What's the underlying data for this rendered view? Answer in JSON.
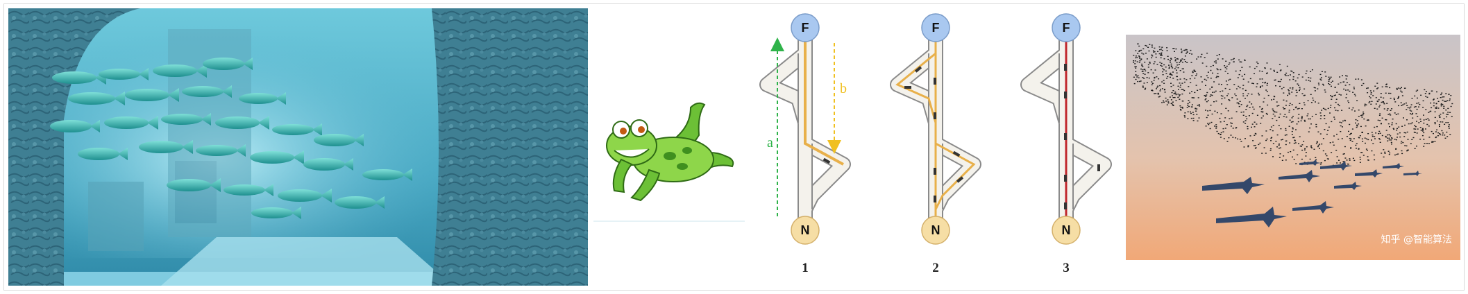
{
  "panels": [
    {
      "name": "fish-school-photo"
    },
    {
      "name": "frog-illustration"
    },
    {
      "name": "ant-path-diagram"
    },
    {
      "name": "bird-flock-photo"
    }
  ],
  "ant_diagram": {
    "node_top": "F",
    "node_bottom": "N",
    "arrow_a": "a",
    "arrow_b": "b",
    "stages": [
      "1",
      "2",
      "3"
    ]
  },
  "watermark": "知乎 @智能算法",
  "colors": {
    "node_top": "#a9c8f0",
    "node_bottom": "#f6dea5",
    "arrow_a": "#2fb34a",
    "arrow_b": "#f0c020",
    "trail": "#e8b04a",
    "shortest": "#c0262c"
  }
}
